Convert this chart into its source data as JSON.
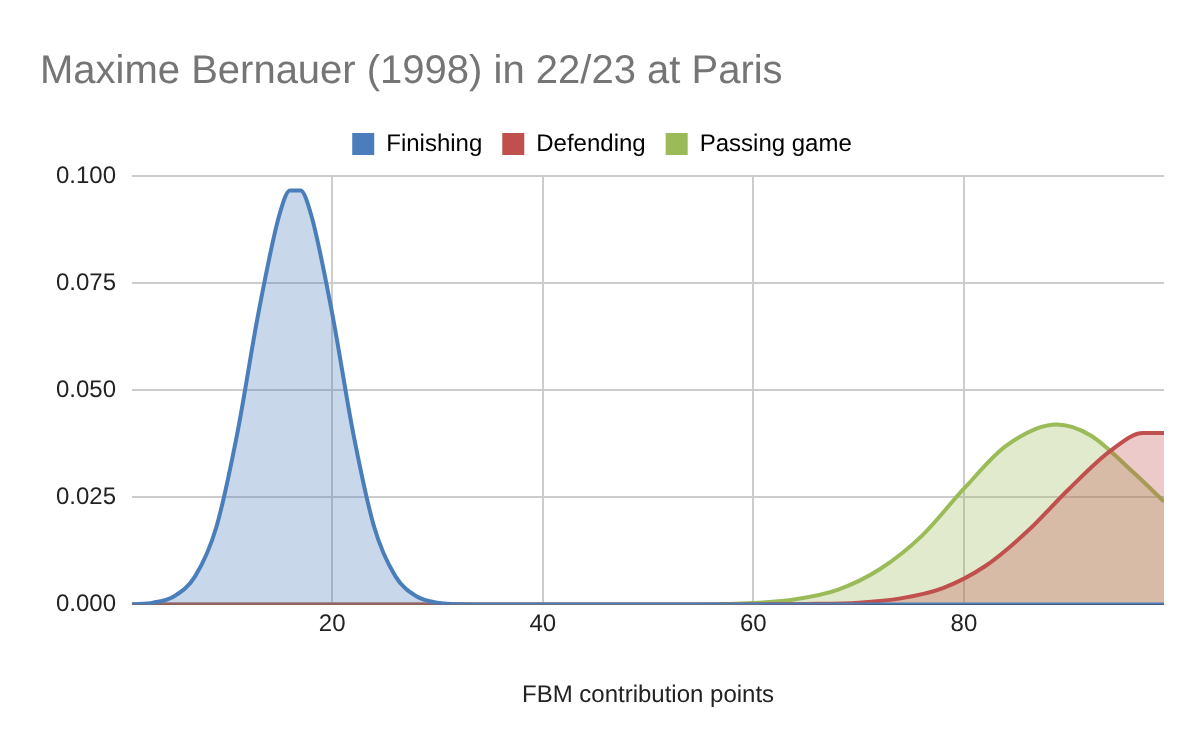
{
  "chart_data": {
    "type": "area",
    "title": "Maxime Bernauer (1998) in 22/23 at Paris",
    "xlabel": "FBM contribution points",
    "xlim": [
      1,
      99
    ],
    "xticks": [
      20,
      40,
      60,
      80
    ],
    "ylim": [
      0,
      0.1
    ],
    "yticks": [
      {
        "value": 0,
        "label": "0.000"
      },
      {
        "value": 0.025,
        "label": "0.025"
      },
      {
        "value": 0.05,
        "label": "0.050"
      },
      {
        "value": 0.075,
        "label": "0.075"
      },
      {
        "value": 0.1,
        "label": "0.100"
      }
    ],
    "grid": true,
    "legend": "top",
    "marker": "none",
    "series": [
      {
        "name": "Finishing",
        "color": "#4a7ebb",
        "x": [
          1,
          3,
          5,
          7,
          9,
          11,
          13,
          15,
          16,
          17,
          18,
          20,
          22,
          24,
          26,
          28,
          30,
          33,
          40,
          99
        ],
        "values": [
          0,
          0.0004,
          0.0019,
          0.0066,
          0.018,
          0.04,
          0.068,
          0.091,
          0.0966,
          0.0966,
          0.091,
          0.068,
          0.04,
          0.018,
          0.0066,
          0.0019,
          0.0004,
          0,
          0,
          0
        ]
      },
      {
        "name": "Defending",
        "color": "#c0504d",
        "x": [
          1,
          60,
          65,
          70,
          74,
          78,
          82,
          86,
          90,
          94,
          97,
          99
        ],
        "values": [
          0,
          0,
          0.0001,
          0.0004,
          0.0014,
          0.0038,
          0.0089,
          0.017,
          0.027,
          0.036,
          0.04,
          0.04
        ]
      },
      {
        "name": "Passing game",
        "color": "#9bbb59",
        "x": [
          1,
          55,
          60,
          64,
          68,
          72,
          76,
          80,
          84,
          88.8,
          92,
          96,
          99
        ],
        "values": [
          0,
          0,
          0.0003,
          0.0012,
          0.0034,
          0.0082,
          0.016,
          0.027,
          0.037,
          0.042,
          0.0395,
          0.031,
          0.024
        ]
      }
    ]
  }
}
